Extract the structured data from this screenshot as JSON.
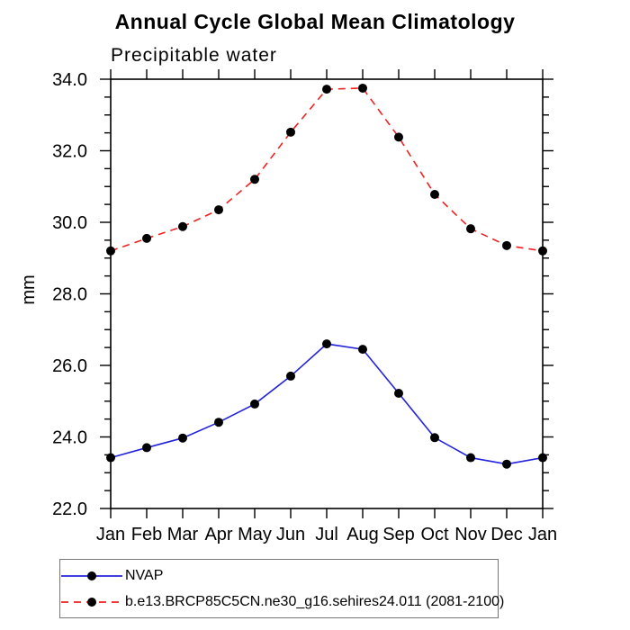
{
  "page": {
    "background_color": "#ffffff",
    "text_color": "#000000"
  },
  "chart_data": {
    "type": "line",
    "title": "Annual Cycle Global Mean Climatology",
    "subtitle": "Precipitable water",
    "ylabel": "mm",
    "xlabel": "",
    "x_tick_labels": [
      "Jan",
      "Feb",
      "Mar",
      "Apr",
      "May",
      "Jun",
      "Jul",
      "Aug",
      "Sep",
      "Oct",
      "Nov",
      "Dec",
      "Jan"
    ],
    "ylim": [
      22.0,
      34.0
    ],
    "y_major_step": 2.0,
    "y_minor_step": 0.5,
    "y_tick_labels": [
      "22.0",
      "24.0",
      "26.0",
      "28.0",
      "30.0",
      "32.0",
      "34.0"
    ],
    "grid": "off",
    "frame": "closed-box-with-outward-ticks",
    "legend_position": "bottom-left",
    "series": [
      {
        "name": "NVAP",
        "color": "#2222DD",
        "line_style": "solid",
        "marker": "filled-circle",
        "marker_color": "#000000",
        "values": [
          23.42,
          23.7,
          23.97,
          24.41,
          24.92,
          25.7,
          26.6,
          26.45,
          25.22,
          23.98,
          23.42,
          23.24,
          23.42
        ]
      },
      {
        "name": "b.e13.BRCP85C5CN.ne30_g16.sehires24.011 (2081-2100)",
        "color": "#EE2222",
        "line_style": "dashed",
        "marker": "filled-circle",
        "marker_color": "#000000",
        "values": [
          29.2,
          29.55,
          29.88,
          30.35,
          31.2,
          32.52,
          33.72,
          33.75,
          32.38,
          30.78,
          29.82,
          29.35,
          29.2
        ]
      }
    ]
  },
  "legend": {
    "border_color": "#777777"
  }
}
